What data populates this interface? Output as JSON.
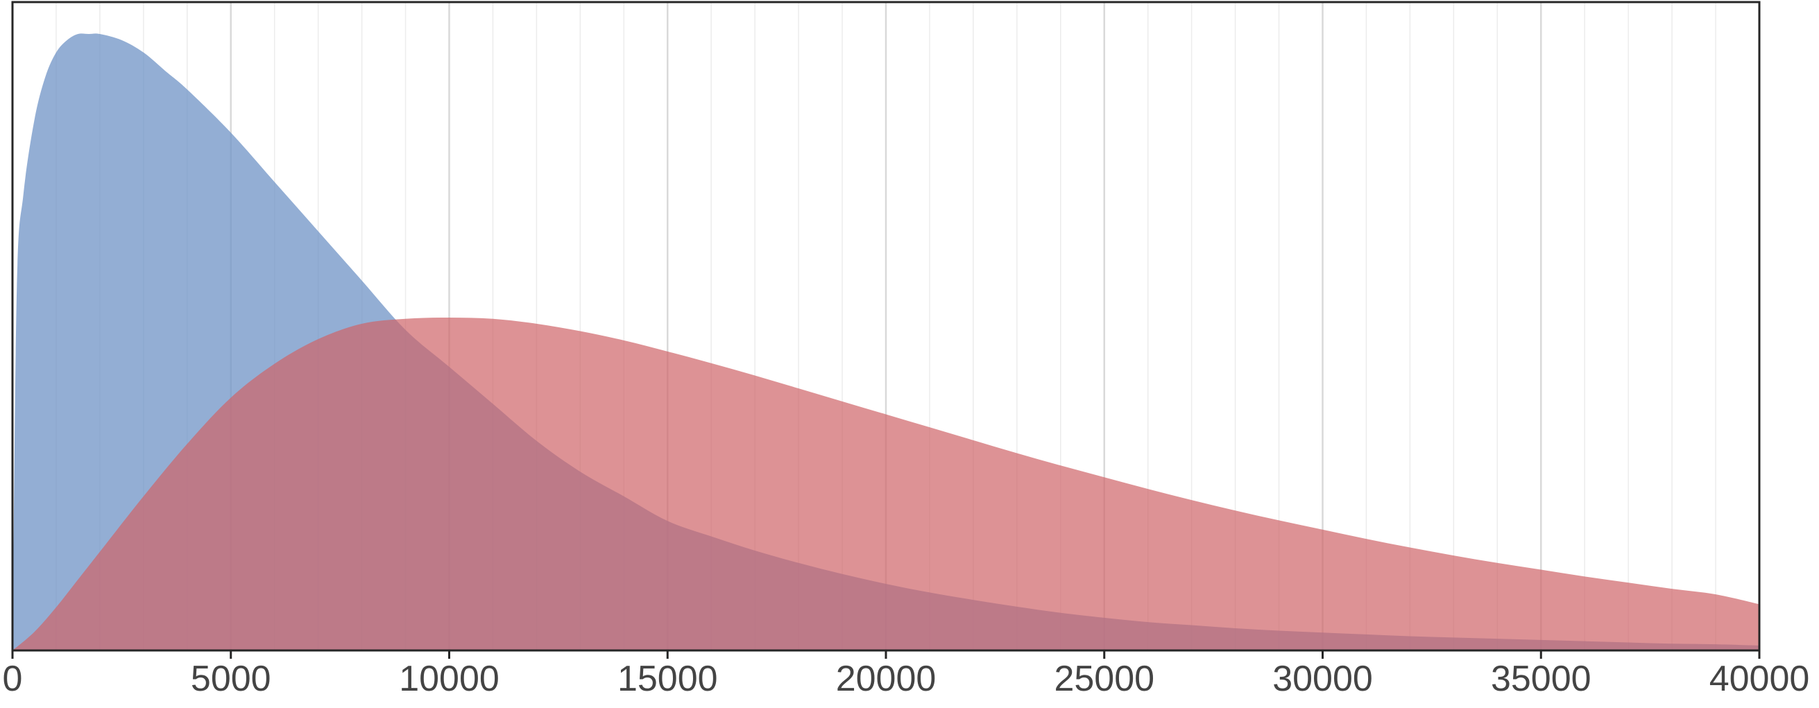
{
  "chart_data": {
    "type": "area",
    "title": "",
    "xlabel": "",
    "ylabel": "",
    "xlim": [
      0,
      40000
    ],
    "ylim": [
      0,
      1.0
    ],
    "grid": {
      "vertical_major": true,
      "vertical_minor": true,
      "horizontal": false
    },
    "legend": "none",
    "x_ticks": [
      0,
      5000,
      10000,
      15000,
      20000,
      25000,
      30000,
      35000,
      40000
    ],
    "x_tick_labels": [
      "0",
      "5000",
      "10000",
      "15000",
      "20000",
      "25000",
      "30000",
      "35000",
      "40000"
    ],
    "y_ticks_visible": false,
    "series": [
      {
        "color": "#6f93c6",
        "fill_opacity": 0.75,
        "x": [
          0,
          100,
          250,
          500,
          750,
          1000,
          1250,
          1500,
          1750,
          2000,
          2500,
          3000,
          3500,
          4000,
          5000,
          6000,
          7000,
          8000,
          9000,
          10000,
          11000,
          12000,
          13000,
          14000,
          15000,
          16000,
          17000,
          18000,
          19000,
          20000,
          21000,
          22000,
          23000,
          24000,
          25000,
          26000,
          27000,
          28000,
          29000,
          30000,
          31000,
          32000,
          33000,
          34000,
          35000,
          36000,
          37000,
          38000,
          39000,
          40000
        ],
        "values": [
          0.0,
          0.59,
          0.74,
          0.86,
          0.93,
          0.97,
          0.99,
          1.0,
          1.0,
          1.0,
          0.99,
          0.97,
          0.94,
          0.91,
          0.84,
          0.76,
          0.68,
          0.6,
          0.52,
          0.46,
          0.4,
          0.34,
          0.29,
          0.25,
          0.21,
          0.185,
          0.162,
          0.142,
          0.124,
          0.108,
          0.094,
          0.082,
          0.071,
          0.061,
          0.053,
          0.046,
          0.041,
          0.036,
          0.032,
          0.029,
          0.026,
          0.023,
          0.021,
          0.019,
          0.017,
          0.015,
          0.013,
          0.011,
          0.01,
          0.008
        ]
      },
      {
        "color": "#ce6468",
        "fill_opacity": 0.7,
        "x": [
          0,
          500,
          1000,
          1500,
          2000,
          3000,
          4000,
          5000,
          6000,
          7000,
          8000,
          9000,
          10000,
          11000,
          12000,
          13000,
          14000,
          15000,
          16000,
          17000,
          18000,
          19000,
          20000,
          21000,
          22000,
          23000,
          24000,
          25000,
          26000,
          27000,
          28000,
          29000,
          30000,
          31000,
          32000,
          33000,
          34000,
          35000,
          36000,
          37000,
          38000,
          39000,
          40000
        ],
        "values": [
          0.0,
          0.03,
          0.07,
          0.115,
          0.16,
          0.25,
          0.335,
          0.41,
          0.465,
          0.505,
          0.53,
          0.538,
          0.54,
          0.538,
          0.53,
          0.518,
          0.503,
          0.485,
          0.466,
          0.446,
          0.425,
          0.404,
          0.383,
          0.362,
          0.341,
          0.32,
          0.3,
          0.281,
          0.262,
          0.244,
          0.227,
          0.211,
          0.196,
          0.181,
          0.167,
          0.154,
          0.142,
          0.131,
          0.12,
          0.11,
          0.1,
          0.091,
          0.075
        ]
      }
    ]
  },
  "style": {
    "frame_color": "#262626",
    "grid_major_color": "#d9d9d9",
    "grid_minor_color": "#ececec",
    "tick_label_color": "#444444"
  }
}
